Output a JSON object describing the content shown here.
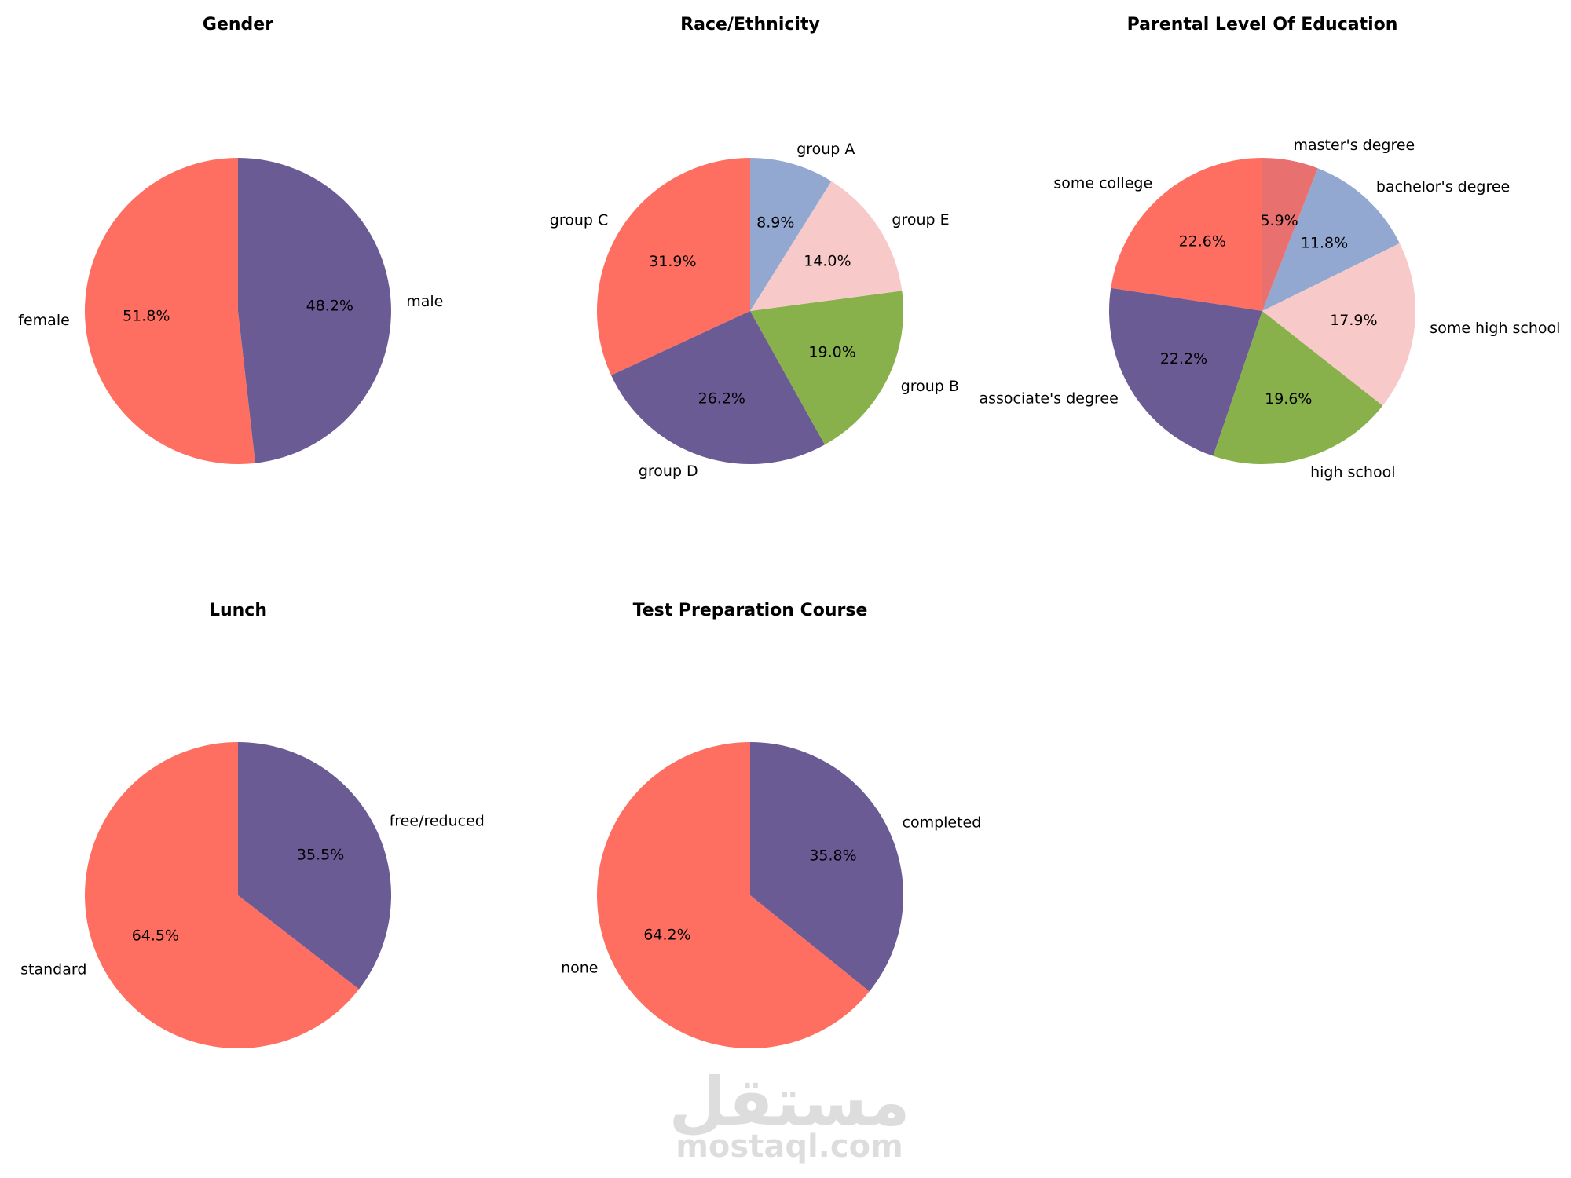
{
  "chart_data": [
    {
      "type": "pie",
      "title": "Gender",
      "categories": [
        "female",
        "male"
      ],
      "values": [
        51.8,
        48.2
      ],
      "colors": [
        "#ff6f61",
        "#6b5b95"
      ],
      "start_angle_deg": 90,
      "direction": "counterclockwise",
      "autopct": true
    },
    {
      "type": "pie",
      "title": "Race/Ethnicity",
      "categories": [
        "group C",
        "group D",
        "group B",
        "group E",
        "group A"
      ],
      "values": [
        31.9,
        26.2,
        19.0,
        14.0,
        8.9
      ],
      "colors": [
        "#ff6f61",
        "#6b5b95",
        "#88b04b",
        "#f7cac9",
        "#92a8d1"
      ],
      "start_angle_deg": 90,
      "direction": "counterclockwise",
      "autopct": true
    },
    {
      "type": "pie",
      "title": "Parental Level Of Education",
      "categories": [
        "some college",
        "associate's degree",
        "high school",
        "some high school",
        "bachelor's degree",
        "master's degree"
      ],
      "values": [
        22.6,
        22.2,
        19.6,
        17.9,
        11.8,
        5.9
      ],
      "colors": [
        "#ff6f61",
        "#6b5b95",
        "#88b04b",
        "#f7cac9",
        "#92a8d1",
        "#e8706e"
      ],
      "start_angle_deg": 90,
      "direction": "counterclockwise",
      "autopct": true
    },
    {
      "type": "pie",
      "title": "Lunch",
      "categories": [
        "standard",
        "free/reduced"
      ],
      "values": [
        64.5,
        35.5
      ],
      "colors": [
        "#ff6f61",
        "#6b5b95"
      ],
      "start_angle_deg": 90,
      "direction": "counterclockwise",
      "autopct": true
    },
    {
      "type": "pie",
      "title": "Test Preparation Course",
      "categories": [
        "none",
        "completed"
      ],
      "values": [
        64.2,
        35.8
      ],
      "colors": [
        "#ff6f61",
        "#6b5b95"
      ],
      "start_angle_deg": 90,
      "direction": "counterclockwise",
      "autopct": true
    }
  ],
  "watermark": {
    "arabic": "مستقل",
    "latin": "mostaql.com"
  }
}
